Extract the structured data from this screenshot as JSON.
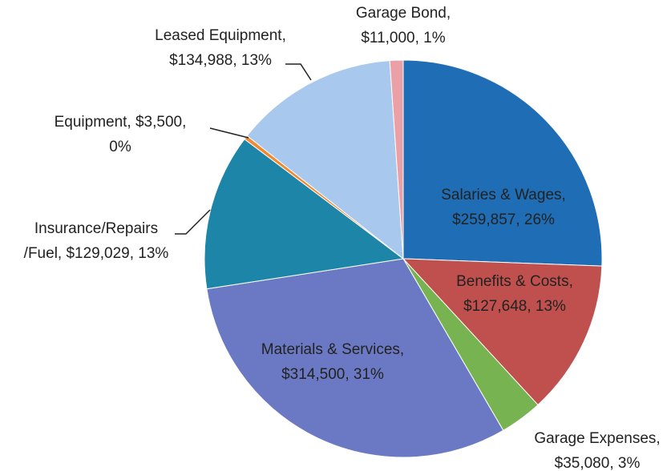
{
  "chart_data": {
    "type": "pie",
    "values": [
      259857,
      127648,
      35080,
      314500,
      129029,
      3500,
      134988,
      11000
    ],
    "value_labels": [
      [
        "Salaries & Wages,",
        "$259,857, 26%"
      ],
      [
        "Benefits & Costs,",
        "$127,648, 13%"
      ],
      [
        "Garage Expenses,",
        "$35,080, 3%"
      ],
      [
        "Materials & Services,",
        "$314,500, 31%"
      ],
      [
        "Insurance/Repairs",
        "/Fuel, $129,029, 13%"
      ],
      [
        "Equipment, $3,500,",
        "0%"
      ],
      [
        "Leased Equipment,",
        "$134,988, 13%"
      ],
      [
        "Garage Bond,",
        "$11,000, 1%"
      ]
    ],
    "colors": [
      "#1f6db5",
      "#c0504d",
      "#77b350",
      "#6b79c4",
      "#1d86a8",
      "#f08a32",
      "#a9c8ee",
      "#e9a0a6"
    ]
  }
}
